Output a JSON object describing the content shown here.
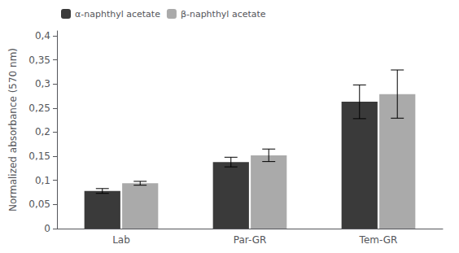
{
  "chart_data": {
    "type": "bar",
    "categories": [
      "Lab",
      "Par-GR",
      "Tem-GR"
    ],
    "series": [
      {
        "name": "α-naphthyl acetate",
        "color": "#3a3a3a",
        "values": [
          0.078,
          0.138,
          0.263
        ],
        "errors": [
          0.005,
          0.01,
          0.035
        ]
      },
      {
        "name": "β-naphthyl acetate",
        "color": "#aaaaaa",
        "values": [
          0.094,
          0.152,
          0.279
        ],
        "errors": [
          0.004,
          0.013,
          0.05
        ]
      }
    ],
    "ylabel": "Normalized absorbance (570 nm)",
    "ylim": [
      0,
      0.41
    ],
    "yticks": [
      0,
      {
        "value": 0.05,
        "label": "0,05"
      },
      {
        "value": 0.1,
        "label": "0,1"
      },
      {
        "value": 0.15,
        "label": "0,15"
      },
      {
        "value": 0.2,
        "label": "0,2"
      },
      {
        "value": 0.25,
        "label": "0,25"
      },
      {
        "value": 0.3,
        "label": "0,3"
      },
      {
        "value": 0.35,
        "label": "0,35"
      },
      {
        "value": 0.4,
        "label": "0,4"
      }
    ],
    "grid": false,
    "legend": "upper left"
  }
}
